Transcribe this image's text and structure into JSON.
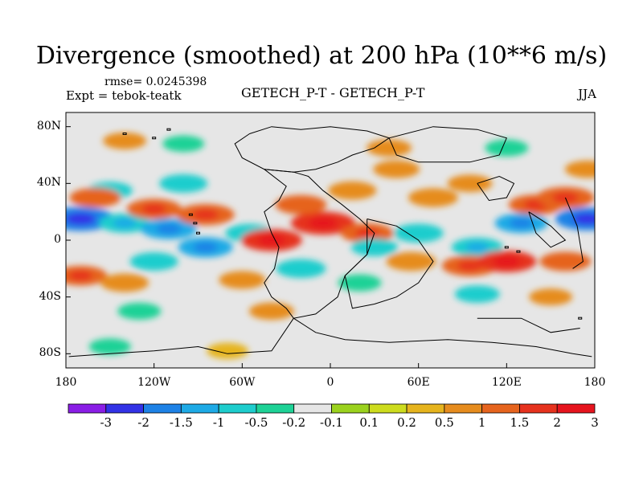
{
  "title": "Divergence (smoothed) at 200 hPa (10**6 m/s)",
  "rmse_label": "rmse= 0.0245398",
  "expt_label": "Expt = tebok-teatk",
  "center_label": "GETECH_P-T - GETECH_P-T",
  "season": "JJA",
  "map": {
    "lon_range": [
      -180,
      180
    ],
    "lat_range": [
      -90,
      90
    ],
    "background_color": "#e6e6e6",
    "coastline_color": "#000000",
    "x_ticks": [
      {
        "lon": -180,
        "label": "180"
      },
      {
        "lon": -120,
        "label": "120W"
      },
      {
        "lon": -60,
        "label": "60W"
      },
      {
        "lon": 0,
        "label": "0"
      },
      {
        "lon": 60,
        "label": "60E"
      },
      {
        "lon": 120,
        "label": "120E"
      },
      {
        "lon": 180,
        "label": "180"
      }
    ],
    "y_ticks": [
      {
        "lat": 80,
        "label": "80N"
      },
      {
        "lat": 40,
        "label": "40N"
      },
      {
        "lat": 0,
        "label": "0"
      },
      {
        "lat": -40,
        "label": "40S"
      },
      {
        "lat": -80,
        "label": "80S"
      }
    ]
  },
  "colorbar": {
    "colors": [
      "#8a1ee6",
      "#3232e6",
      "#1e82e6",
      "#1eaae6",
      "#1ecdcd",
      "#1ed296",
      "#e6e6e6",
      "#9bd21e",
      "#cddc1e",
      "#e6b41e",
      "#e68c1e",
      "#e6641e",
      "#e6321e",
      "#e6141e"
    ],
    "labels": [
      "-3",
      "-2",
      "-1.5",
      "-1",
      "-0.5",
      "-0.2",
      "-0.1",
      "0.1",
      "0.2",
      "0.5",
      "1",
      "1.5",
      "2",
      "3"
    ]
  },
  "fields": [
    {
      "lon": -170,
      "lat": 15,
      "value": -2.0
    },
    {
      "lon": -140,
      "lat": 12,
      "value": -1.0
    },
    {
      "lon": -110,
      "lat": 8,
      "value": -1.3
    },
    {
      "lon": -85,
      "lat": -5,
      "value": -1.2
    },
    {
      "lon": -150,
      "lat": 35,
      "value": -0.6
    },
    {
      "lon": -100,
      "lat": 40,
      "value": -0.8
    },
    {
      "lon": -55,
      "lat": 5,
      "value": -0.8
    },
    {
      "lon": -120,
      "lat": -15,
      "value": -0.8
    },
    {
      "lon": -160,
      "lat": 30,
      "value": 1.0
    },
    {
      "lon": -120,
      "lat": 22,
      "value": 1.2
    },
    {
      "lon": -85,
      "lat": 18,
      "value": 1.4
    },
    {
      "lon": -40,
      "lat": 0,
      "value": 1.6
    },
    {
      "lon": -5,
      "lat": 12,
      "value": 1.8
    },
    {
      "lon": 25,
      "lat": 5,
      "value": 1.1
    },
    {
      "lon": -20,
      "lat": 25,
      "value": 1.0
    },
    {
      "lon": 15,
      "lat": 35,
      "value": 0.8
    },
    {
      "lon": 45,
      "lat": 50,
      "value": 0.7
    },
    {
      "lon": 70,
      "lat": 30,
      "value": 0.9
    },
    {
      "lon": 95,
      "lat": 40,
      "value": 0.6
    },
    {
      "lon": 140,
      "lat": 25,
      "value": 1.2
    },
    {
      "lon": 160,
      "lat": 30,
      "value": 1.4
    },
    {
      "lon": 175,
      "lat": 15,
      "value": -1.8
    },
    {
      "lon": 130,
      "lat": 12,
      "value": -1.1
    },
    {
      "lon": 60,
      "lat": 5,
      "value": -0.9
    },
    {
      "lon": 30,
      "lat": -5,
      "value": -0.7
    },
    {
      "lon": 100,
      "lat": -5,
      "value": -1.0
    },
    {
      "lon": 95,
      "lat": -18,
      "value": 1.3
    },
    {
      "lon": 120,
      "lat": -15,
      "value": 1.5
    },
    {
      "lon": 160,
      "lat": -15,
      "value": 1.0
    },
    {
      "lon": 55,
      "lat": -15,
      "value": 0.9
    },
    {
      "lon": -170,
      "lat": -25,
      "value": 1.1
    },
    {
      "lon": -140,
      "lat": -30,
      "value": 0.8
    },
    {
      "lon": -60,
      "lat": -28,
      "value": 0.7
    },
    {
      "lon": -20,
      "lat": -20,
      "value": -0.9
    },
    {
      "lon": 20,
      "lat": -30,
      "value": -0.5
    },
    {
      "lon": 100,
      "lat": -38,
      "value": -0.6
    },
    {
      "lon": 150,
      "lat": -40,
      "value": 0.5
    },
    {
      "lon": -130,
      "lat": -50,
      "value": -0.5
    },
    {
      "lon": -40,
      "lat": -50,
      "value": 0.6
    },
    {
      "lon": -150,
      "lat": -75,
      "value": -0.4
    },
    {
      "lon": -70,
      "lat": -78,
      "value": 0.4
    },
    {
      "lon": 40,
      "lat": 65,
      "value": 0.6
    },
    {
      "lon": -140,
      "lat": 70,
      "value": 0.5
    },
    {
      "lon": 120,
      "lat": 65,
      "value": -0.5
    },
    {
      "lon": -100,
      "lat": 68,
      "value": -0.4
    },
    {
      "lon": 175,
      "lat": 50,
      "value": 0.6
    }
  ]
}
